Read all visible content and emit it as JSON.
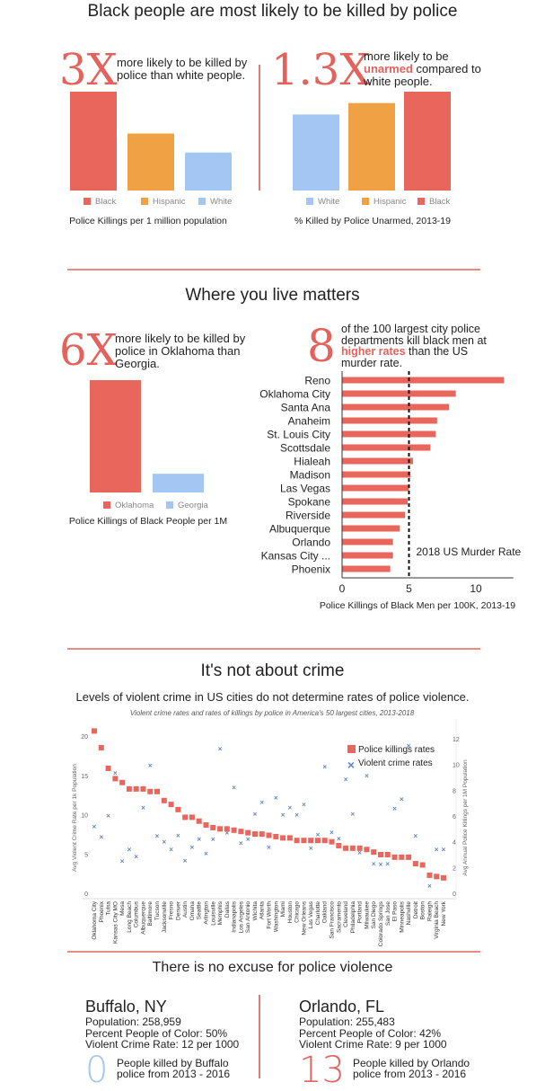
{
  "section1": {
    "title": "Black people are most likely to be killed by police",
    "left": {
      "big": "3X",
      "blurb": "more likely to be killed by police than white people.",
      "caption": "Police Killings per 1 million population"
    },
    "right": {
      "big": "1.3X",
      "blurb_pre": "more likely to be",
      "blurb_hl": "unarmed",
      "blurb_post": "compared to white people.",
      "caption": "% Killed by Police Unarmed, 2013-19"
    }
  },
  "section2": {
    "title": "Where you live matters",
    "left": {
      "big": "6X",
      "blurb": "more likely to be killed by police in Oklahoma than Georgia.",
      "caption": "Police Killings of Black People per 1M"
    },
    "right": {
      "big": "8",
      "blurb_pre": "of the 100 largest city police departments kill black men at",
      "blurb_hl": "higher rates",
      "blurb_post": "than the US murder rate.",
      "reference_label": "2018 US Murder Rate"
    }
  },
  "section3": {
    "title": "It's not about crime",
    "subtitle": "Levels of violent crime in US cities do not determine rates of police violence."
  },
  "section4": {
    "title": "There is no excuse for police violence",
    "cities": [
      {
        "name": "Buffalo, NY",
        "population": "Population: 258,959",
        "poc": "Percent People of Color: 50%",
        "crime": "Violent Crime Rate: 12 per 1000",
        "killed": "0",
        "killed_text": "People killed by Buffalo police from 2013 - 2016",
        "color": "#a3c6f2"
      },
      {
        "name": "Orlando, FL",
        "population": "Population: 255,483",
        "poc": "Percent People of Color: 42%",
        "crime": "Violent Crime Rate: 9 per 1000",
        "killed": "13",
        "killed_text": "People killed by Orlando police from 2013 - 2016",
        "color": "#e4625c"
      }
    ]
  },
  "colors": {
    "black": "#e8665c",
    "hispanic": "#f0a144",
    "white": "#a3c6f2",
    "accent": "#e4625c",
    "crime": "#5b86c6"
  },
  "chart_data": [
    {
      "type": "bar",
      "title": "Police Killings per 1 million population",
      "note": "relative bar heights (no axis shown)",
      "categories": [
        "Black",
        "Hispanic",
        "White"
      ],
      "values": [
        2.6,
        1.5,
        1.0
      ]
    },
    {
      "type": "bar",
      "title": "% Killed by Police Unarmed, 2013-19",
      "note": "relative bar heights (no axis shown)",
      "categories": [
        "White",
        "Hispanic",
        "Black"
      ],
      "values": [
        1.0,
        1.15,
        1.3
      ]
    },
    {
      "type": "bar",
      "title": "Police Killings of Black People per 1M",
      "note": "relative bar heights (no axis shown)",
      "categories": [
        "Oklahoma",
        "Georgia"
      ],
      "values": [
        6,
        1
      ]
    },
    {
      "type": "bar",
      "orientation": "horizontal",
      "xlabel": "Police Killings of Black Men per 100K, 2013-19",
      "xlim": [
        0,
        12.8
      ],
      "xticks": [
        "0",
        "5",
        "10"
      ],
      "reference_line": 5,
      "categories": [
        "Reno",
        "Oklahoma City",
        "Santa Ana",
        "Anaheim",
        "St. Louis City",
        "Scottsdale",
        "Hialeah",
        "Madison",
        "Las Vegas",
        "Spokane",
        "Riverside",
        "Albuquerque",
        "Orlando",
        "Kansas City ...",
        "Phoenix"
      ],
      "values": [
        12.1,
        8.5,
        8.0,
        7.1,
        7.0,
        6.6,
        5.3,
        5.1,
        5.0,
        4.9,
        4.7,
        4.3,
        3.8,
        3.8,
        3.6
      ]
    },
    {
      "type": "scatter",
      "title": "Violent crime rates and rates of killings by police in America's 50 largest cities, 2013-2018",
      "ylabel_left": "Avg Violent Crime Rate per 1k Population",
      "ylabel_right": "Avg Annual Police Killings per 1M Population",
      "ylim_left": [
        0,
        21.5
      ],
      "ylim_right": [
        0,
        13
      ],
      "yticks_left": [
        "0",
        "5",
        "10",
        "15",
        "20"
      ],
      "yticks_right": [
        "0",
        "2",
        "4",
        "6",
        "8",
        "10",
        "12"
      ],
      "legend": [
        "Police killings rates",
        "Violent crime rates"
      ],
      "legend_position": "top-right",
      "categories": [
        "Oklahoma City",
        "Phoenix",
        "Tulsa",
        "Kansas City MO",
        "Mesa",
        "Long Beach",
        "Columbus",
        "Albuquerque",
        "Baltimore",
        "Tucson",
        "Jacksonville",
        "Fresno",
        "Denver",
        "Austin",
        "Omaha",
        "Seattle",
        "Arlington",
        "Louisville",
        "Memphis",
        "Dallas",
        "Indianapolis",
        "Los Angeles",
        "San Antonio",
        "Wichita",
        "Atlanta",
        "Fort Worth",
        "Washington",
        "Miami",
        "Houston",
        "Chicago",
        "New Orleans",
        "Las Vegas",
        "Charlotte",
        "Oakland",
        "San Francisco",
        "Sacramento",
        "Cleveland",
        "Philadelphia",
        "Portland",
        "Milwaukee",
        "San Diego",
        "Colorado Springs",
        "San Jose",
        "El Paso",
        "Minneapolis",
        "Nashville",
        "Detroit",
        "Boston",
        "Raleigh",
        "Virginia Beach",
        "New York"
      ],
      "series": [
        {
          "name": "Police killings rates",
          "axis": "right",
          "values": [
            12.6,
            11.3,
            9.7,
            8.9,
            8.6,
            8.1,
            8.1,
            8.1,
            7.9,
            7.9,
            7.2,
            6.9,
            6.5,
            5.9,
            5.9,
            5.6,
            5.3,
            5.1,
            5.0,
            5.0,
            4.9,
            4.8,
            4.7,
            4.6,
            4.6,
            4.5,
            4.4,
            4.3,
            4.3,
            4.1,
            4.1,
            4.1,
            4.1,
            4.1,
            4.0,
            3.7,
            3.5,
            3.5,
            3.5,
            3.4,
            3.2,
            3.0,
            3.0,
            2.8,
            2.8,
            2.8,
            2.3,
            2.2,
            1.4,
            1.3,
            1.2
          ]
        },
        {
          "name": "Violent crime rates",
          "axis": "left",
          "values": [
            8.5,
            7.2,
            9.9,
            15.3,
            4.1,
            5.6,
            4.7,
            10.9,
            16.3,
            7.3,
            6.6,
            5.6,
            7.4,
            4.2,
            5.9,
            6.9,
            5.1,
            6.9,
            18.4,
            7.7,
            13.5,
            6.4,
            6.9,
            10.1,
            11.6,
            5.9,
            12.2,
            10.0,
            10.9,
            10.0,
            11.3,
            5.8,
            7.5,
            16.1,
            7.8,
            7.0,
            14.5,
            10.1,
            5.2,
            15.0,
            3.8,
            3.7,
            3.8,
            10.8,
            12.0,
            18.8,
            7.3,
            3.7,
            1.0,
            5.6,
            5.6
          ]
        }
      ]
    }
  ]
}
